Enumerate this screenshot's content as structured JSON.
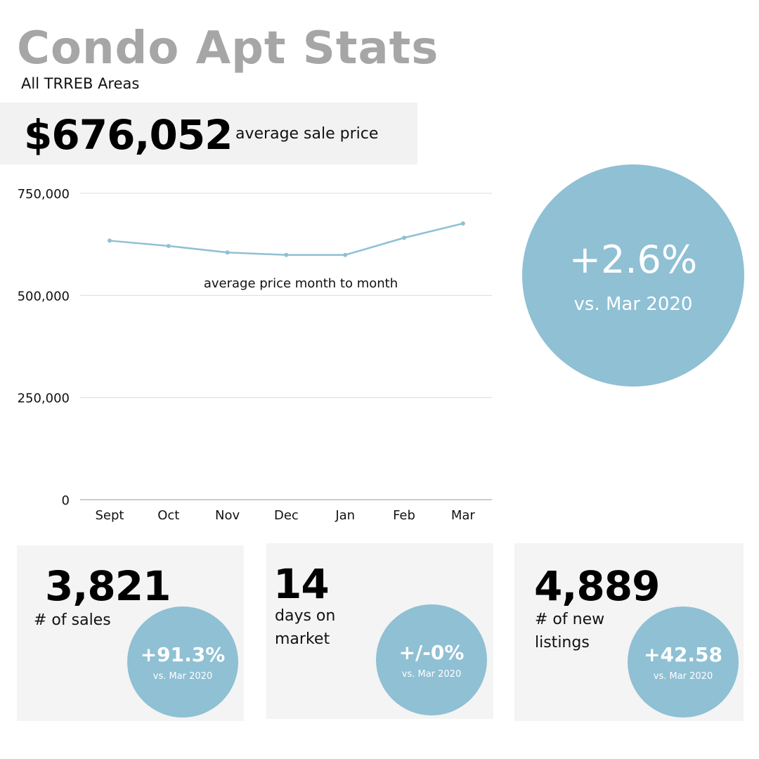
{
  "header": {
    "title": "Condo Apt Stats",
    "subtitle": "All TRREB Areas"
  },
  "headline": {
    "value": "$676,052",
    "caption": "average sale price"
  },
  "yoy": {
    "pct": "+2.6%",
    "vs": "vs. Mar 2020"
  },
  "chart_data": {
    "type": "line",
    "annotation": "average price month to month",
    "categories": [
      "Sept",
      "Oct",
      "Nov",
      "Dec",
      "Jan",
      "Feb",
      "Mar"
    ],
    "series": [
      {
        "values": [
          634000,
          621000,
          605000,
          599000,
          599000,
          641000,
          676052
        ]
      }
    ],
    "yticks": [
      0,
      250000,
      500000,
      750000
    ],
    "ytick_labels": [
      "0",
      "250,000",
      "500,000",
      "750,000"
    ],
    "ylim": [
      0,
      750000
    ],
    "grid": true,
    "color": "#8fc0d4"
  },
  "stats": [
    {
      "value": "3,821",
      "label_lines": [
        "# of sales"
      ],
      "pct": "+91.3%",
      "vs": "vs. Mar 2020"
    },
    {
      "value": "14",
      "label_lines": [
        "days on",
        "market"
      ],
      "pct": "+/-0%",
      "vs": "vs. Mar 2020"
    },
    {
      "value": "4,889",
      "label_lines": [
        "# of new",
        "listings"
      ],
      "pct": "+42.58",
      "vs": "vs. Mar 2020"
    }
  ],
  "colors": {
    "accent": "#8fc0d4",
    "panel": "#f4f4f4",
    "title": "#a6a6a6"
  }
}
